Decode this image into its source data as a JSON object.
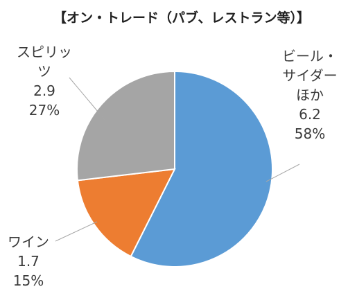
{
  "chart_data": {
    "type": "pie",
    "title": "【オン・トレード（パブ、レストラン等）】",
    "slices": [
      {
        "label_lines": [
          "ビール・",
          "サイダー",
          "ほか"
        ],
        "value": 6.2,
        "percent": "58%",
        "color": "#5b9bd5"
      },
      {
        "label_lines": [
          "ワイン"
        ],
        "value": 1.7,
        "percent": "15%",
        "color": "#ed7d31"
      },
      {
        "label_lines": [
          "スピリッ",
          "ツ"
        ],
        "value": 2.9,
        "percent": "27%",
        "color": "#a5a5a5"
      }
    ],
    "start_angle_deg": 0,
    "direction": "clockwise",
    "leader_lines": true
  }
}
